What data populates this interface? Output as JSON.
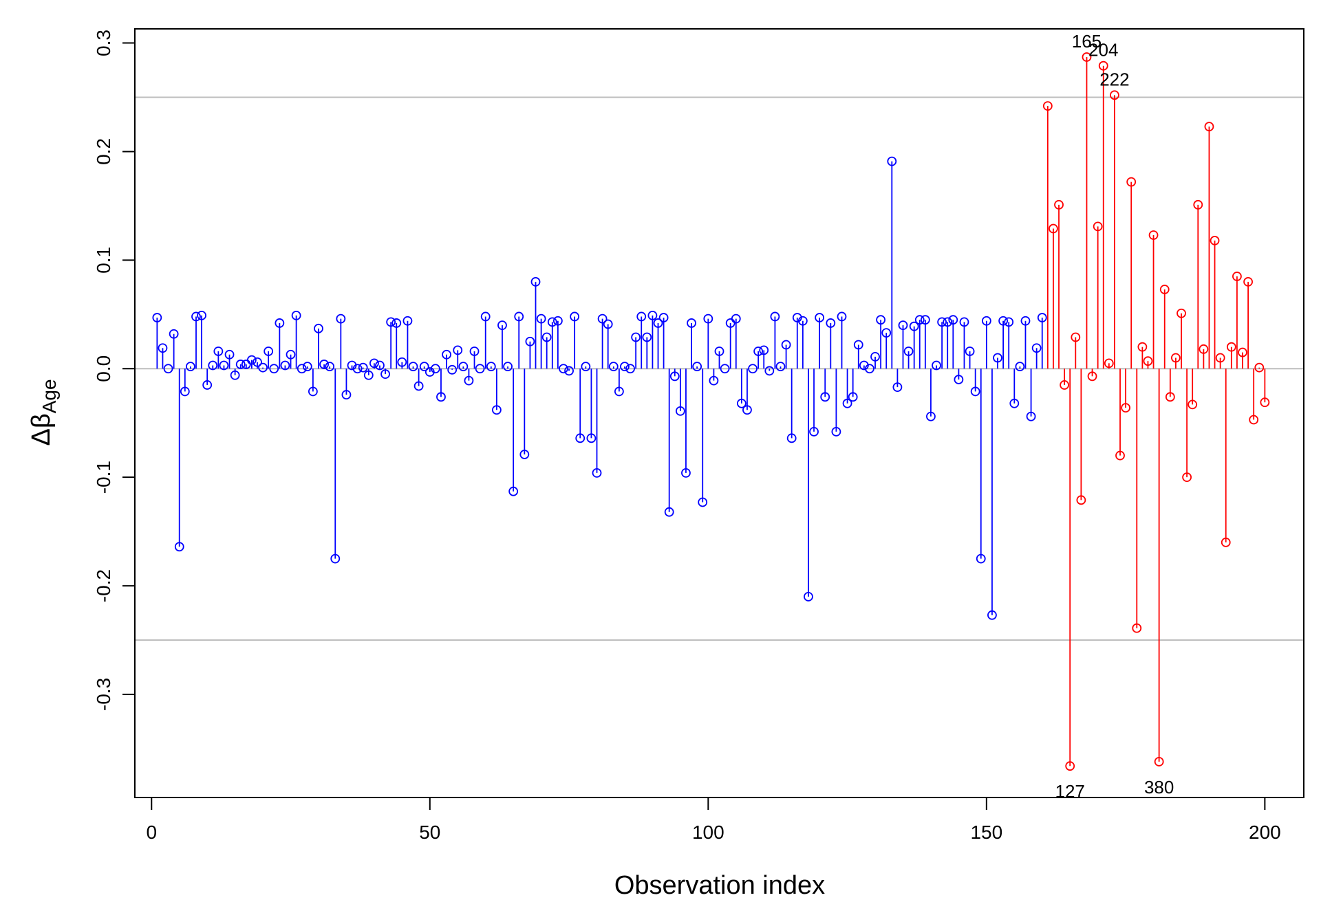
{
  "chart_data": {
    "type": "scatter",
    "style": "stem (lollipop) plot",
    "title": "",
    "xlabel": "Observation index",
    "ylabel": {
      "symbol": "Δβ",
      "subscript": "Age"
    },
    "xlim": [
      -3,
      207
    ],
    "ylim": [
      -0.395,
      0.313
    ],
    "xticks": [
      0,
      50,
      100,
      150,
      200
    ],
    "yticks": [
      -0.3,
      -0.2,
      -0.1,
      0.0,
      0.1,
      0.2,
      0.3
    ],
    "ytick_labels": [
      "-0.3",
      "-0.2",
      "-0.1",
      "0.0",
      "0.1",
      "0.2",
      "0.3"
    ],
    "reference_lines": [
      0.25,
      0.0,
      -0.25
    ],
    "reference_color": "#bebebe",
    "grid": false,
    "series": [
      {
        "color": "#0000ff",
        "x_start": 1,
        "values": [
          0.047,
          0.019,
          0.0,
          0.032,
          -0.164,
          -0.021,
          0.002,
          0.048,
          0.049,
          -0.015,
          0.003,
          0.016,
          0.003,
          0.013,
          -0.006,
          0.004,
          0.004,
          0.008,
          0.006,
          0.001,
          0.016,
          0.0,
          0.042,
          0.003,
          0.013,
          0.049,
          0.0,
          0.002,
          -0.021,
          0.037,
          0.004,
          0.002,
          -0.175,
          0.046,
          -0.024,
          0.003,
          0.0,
          0.001,
          -0.006,
          0.005,
          0.003,
          -0.005,
          0.043,
          0.042,
          0.006,
          0.044,
          0.002,
          -0.016,
          0.002,
          -0.003,
          0.0,
          -0.026,
          0.013,
          -0.001,
          0.017,
          0.002,
          -0.011,
          0.016,
          0.0,
          0.048,
          0.002,
          -0.038,
          0.04,
          0.002,
          -0.113,
          0.048,
          -0.079,
          0.025,
          0.08,
          0.046,
          0.029,
          0.043,
          0.044,
          0.0,
          -0.002,
          0.048,
          -0.064,
          0.002,
          -0.064,
          -0.096,
          0.046,
          0.041,
          0.002,
          -0.021,
          0.002,
          0.0,
          0.029,
          0.048,
          0.029,
          0.049,
          0.042,
          0.047,
          -0.132,
          -0.007,
          -0.039,
          -0.096,
          0.042,
          0.002,
          -0.123,
          0.046,
          -0.011,
          0.016,
          0.0,
          0.042,
          0.046,
          -0.032,
          -0.038,
          0.0,
          0.016,
          0.017,
          -0.002,
          0.048,
          0.002,
          0.022,
          -0.064,
          0.047,
          0.044,
          -0.21,
          -0.058,
          0.047,
          -0.026,
          0.042,
          -0.058,
          0.048,
          -0.032,
          -0.026,
          0.022,
          0.003,
          0.0,
          0.011,
          0.045,
          0.033,
          0.191,
          -0.017,
          0.04,
          0.016,
          0.039,
          0.045,
          0.045,
          -0.044,
          0.003,
          0.043,
          0.043,
          0.045,
          -0.01,
          0.043,
          0.016,
          -0.021,
          -0.175,
          0.044,
          -0.227,
          0.01,
          0.044,
          0.043,
          -0.032,
          0.002,
          0.044,
          -0.044,
          0.019,
          0.047
        ]
      },
      {
        "color": "#ff0000",
        "x_start": 161,
        "values": [
          0.242,
          0.129,
          0.151,
          -0.015,
          -0.366,
          0.029,
          -0.121,
          0.287,
          -0.007,
          0.131,
          0.279,
          0.005,
          0.252,
          -0.08,
          -0.036,
          0.172,
          -0.239,
          0.02,
          0.007,
          0.123,
          -0.362,
          0.073,
          -0.026,
          0.01,
          0.051,
          -0.1,
          -0.033,
          0.151,
          0.018,
          0.223,
          0.118,
          0.01,
          -0.16,
          0.02,
          0.085,
          0.015,
          0.08,
          -0.047,
          0.001,
          -0.031
        ]
      }
    ],
    "annotations": [
      {
        "label": "165",
        "x": 168,
        "y": 0.287,
        "position": "above"
      },
      {
        "label": "204",
        "x": 171,
        "y": 0.279,
        "position": "above"
      },
      {
        "label": "222",
        "x": 173,
        "y": 0.252,
        "position": "above"
      },
      {
        "label": "127",
        "x": 165,
        "y": -0.366,
        "position": "below"
      },
      {
        "label": "380",
        "x": 181,
        "y": -0.362,
        "position": "below"
      }
    ]
  }
}
